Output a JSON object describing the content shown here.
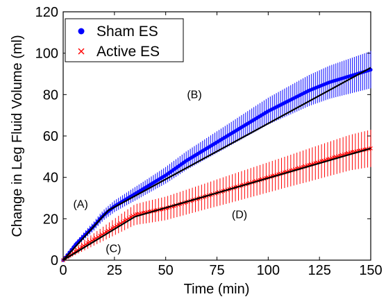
{
  "chart_data": {
    "type": "line",
    "title": "",
    "xlabel": "Time (min)",
    "ylabel": "Change in Leg Fluid Volume (ml)",
    "xlim": [
      0,
      150
    ],
    "ylim": [
      0,
      120
    ],
    "xticks": [
      0,
      25,
      50,
      75,
      100,
      125,
      150
    ],
    "yticks": [
      0,
      20,
      40,
      60,
      80,
      100,
      120
    ],
    "grid": false,
    "legend_position": "top-left",
    "series": [
      {
        "name": "Sham ES",
        "color": "#0000ff",
        "marker": "circle",
        "x": [
          0,
          2,
          4,
          6,
          8,
          10,
          12,
          15,
          18,
          20,
          25,
          30,
          35,
          40,
          50,
          60,
          70,
          80,
          90,
          100,
          110,
          120,
          130,
          140,
          150
        ],
        "y": [
          0,
          2.5,
          5,
          7.5,
          9.5,
          11.5,
          13.5,
          16.5,
          20,
          22,
          26,
          29,
          32,
          35,
          41,
          48,
          54,
          60,
          66,
          72,
          77,
          82,
          86,
          89,
          92
        ],
        "err": [
          0,
          0.6,
          1,
          1.3,
          1.6,
          1.8,
          2,
          2.2,
          2.4,
          2.5,
          2.8,
          3,
          3.3,
          3.5,
          4,
          4.5,
          5,
          5.5,
          6,
          6.5,
          7,
          7.5,
          8,
          8.5,
          9
        ]
      },
      {
        "name": "Active ES",
        "color": "#ff0000",
        "marker": "x",
        "x": [
          0,
          2,
          5,
          10,
          15,
          20,
          25,
          30,
          35,
          40,
          50,
          60,
          70,
          80,
          90,
          100,
          110,
          120,
          130,
          140,
          150
        ],
        "y": [
          0,
          1.5,
          3.5,
          7,
          10,
          13,
          16,
          19,
          22,
          23,
          25,
          28,
          31,
          34,
          37,
          40,
          43,
          46,
          49,
          52,
          54
        ],
        "err": [
          0,
          0.8,
          1.5,
          2.5,
          3,
          3.5,
          4,
          4.5,
          5,
          5.3,
          5.7,
          6,
          6.3,
          6.7,
          7,
          7.3,
          7.6,
          8,
          8.3,
          8.6,
          9
        ]
      }
    ],
    "fit_lines": [
      {
        "color": "#000000",
        "points": [
          [
            0,
            0
          ],
          [
            22,
            24
          ],
          [
            150,
            93
          ]
        ]
      },
      {
        "color": "#000000",
        "points": [
          [
            0,
            0
          ],
          [
            35,
            21
          ],
          [
            150,
            54
          ]
        ]
      }
    ],
    "annotations": [
      {
        "text": "(A)",
        "x": 8.5,
        "y": 27
      },
      {
        "text": "(B)",
        "x": 64,
        "y": 80
      },
      {
        "text": "(C)",
        "x": 24.5,
        "y": 5.5
      },
      {
        "text": "(D)",
        "x": 86,
        "y": 22
      }
    ]
  }
}
